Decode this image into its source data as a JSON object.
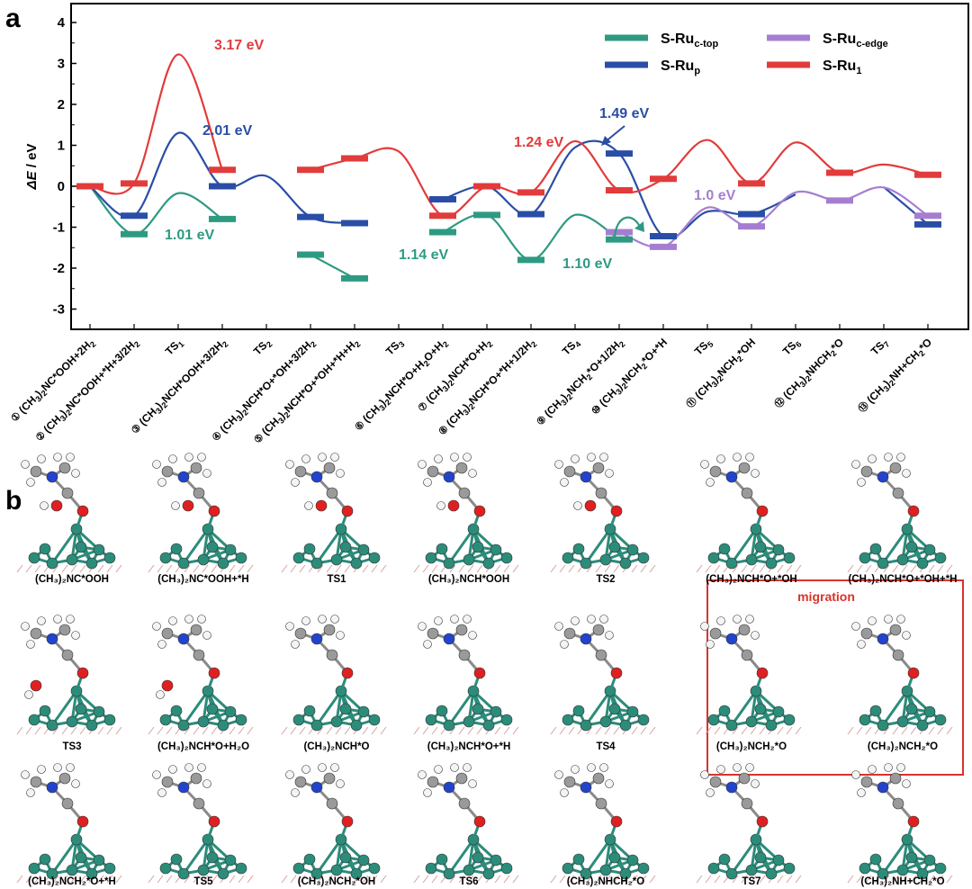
{
  "panel_a_label": "a",
  "panel_b_label": "b",
  "chart_data": {
    "type": "line",
    "ylabel": "ΔE / eV",
    "ylim": [
      -3.6,
      4.5
    ],
    "yticks": [
      "4",
      "3",
      "2",
      "1",
      "0",
      "-1",
      "-2",
      "-3"
    ],
    "categories": [
      "(CH3)2NC*OOH+2H2",
      "(CH3)2NC*OOH+*H+3/2H2",
      "TS1",
      "(CH3)2NCH*OOH+3/2H2",
      "TS2",
      "(CH3)2NCH*O+*OH+3/2H2",
      "(CH3)2NCH*O+*OH+*H+H2",
      "TS3",
      "(CH3)2NCH*O+H2O+H2",
      "(CH3)2NCH*O+H2",
      "(CH3)2NCH*O+*H+1/2H2",
      "TS4",
      "(CH3)2NCH2*O+1/2H2",
      "(CH3)2NCH2*O+*H",
      "TS5",
      "(CH3)2NCH2*OH",
      "TS6",
      "(CH3)2NHCH2*O",
      "TS7",
      "(CH3)2NH+CH2*O"
    ],
    "tick_numbers": [
      "①",
      "②",
      "",
      "③",
      "",
      "④",
      "⑤",
      "",
      "⑥",
      "⑦",
      "⑧",
      "",
      "⑨",
      "⑩",
      "",
      "⑪",
      "",
      "⑫",
      "",
      "⑬"
    ],
    "series": [
      {
        "name": "S-Ruc-top",
        "color": "#2e9a82",
        "values": [
          0,
          -1.17,
          -0.17,
          -0.8,
          null,
          -1.67,
          -2.25,
          null,
          -1.12,
          -0.7,
          -1.8,
          -0.7,
          -1.3,
          null,
          null,
          null,
          null,
          null,
          null,
          null
        ]
      },
      {
        "name": "S-Rup",
        "color": "#2a4ea6",
        "values": [
          0,
          -0.72,
          1.3,
          0,
          0.25,
          -0.75,
          -0.9,
          null,
          -0.32,
          0,
          -0.68,
          0.95,
          0.8,
          -1.22,
          -0.62,
          -0.68,
          -0.2,
          null,
          -0.02,
          -0.93
        ]
      },
      {
        "name": "S-Ruc-edge",
        "color": "#a57ed0",
        "values": [
          null,
          null,
          null,
          null,
          null,
          null,
          null,
          null,
          null,
          null,
          null,
          null,
          -1.12,
          -1.48,
          -0.52,
          -0.98,
          -0.15,
          -0.35,
          -0.03,
          -0.72
        ]
      },
      {
        "name": "S-Ru1",
        "color": "#e23b3b",
        "values": [
          0,
          0.07,
          3.22,
          0.4,
          null,
          0.4,
          0.68,
          0.85,
          -0.72,
          0,
          -0.15,
          1.1,
          -0.1,
          0.18,
          1.13,
          0.07,
          1.07,
          0.33,
          0.53,
          0.28
        ]
      }
    ],
    "annotations": [
      {
        "text": "3.17 eV",
        "color": "#e23b3b"
      },
      {
        "text": "2.01 eV",
        "color": "#2a4ea6"
      },
      {
        "text": "1.01 eV",
        "color": "#2e9a82"
      },
      {
        "text": "1.14 eV",
        "color": "#2e9a82"
      },
      {
        "text": "1.24 eV",
        "color": "#e23b3b"
      },
      {
        "text": "1.49 eV",
        "color": "#2a4ea6"
      },
      {
        "text": "1.10 eV",
        "color": "#2e9a82"
      },
      {
        "text": "1.0 eV",
        "color": "#a57ed0"
      }
    ],
    "legend": [
      {
        "base": "S-Ru",
        "sub": "c-top",
        "color": "#2e9a82"
      },
      {
        "base": "S-Ru",
        "sub": "p",
        "color": "#2a4ea6"
      },
      {
        "base": "S-Ru",
        "sub": "c-edge",
        "color": "#a57ed0"
      },
      {
        "base": "S-Ru",
        "sub": "1",
        "color": "#e23b3b"
      }
    ],
    "legend_position": "top-right"
  },
  "structures": {
    "row1": [
      "(CH₃)₂NC*OOH",
      "(CH₃)₂NC*OOH+*H",
      "TS1",
      "(CH₃)₂NCH*OOH",
      "TS2",
      "(CH₃)₂NCH*O+*OH",
      "(CH₃)₂NCH*O+*OH+*H"
    ],
    "row2": [
      "TS3",
      "(CH₃)₂NCH*O+H₂O",
      "(CH₃)₂NCH*O",
      "(CH₃)₂NCH*O+*H",
      "TS4",
      "(CH₃)₂NCH₂*O",
      "(CH₃)₂NCH₂*O"
    ],
    "row3": [
      "(CH₃)₂NCH₂*O+*H",
      "TS5",
      "(CH₃)₂NCH₂*OH",
      "TS6",
      "(CH₃)₂NHCH₂*O",
      "TS7",
      "(CH₃)₂NH+CH₂*O"
    ],
    "migration_label": "migration"
  }
}
